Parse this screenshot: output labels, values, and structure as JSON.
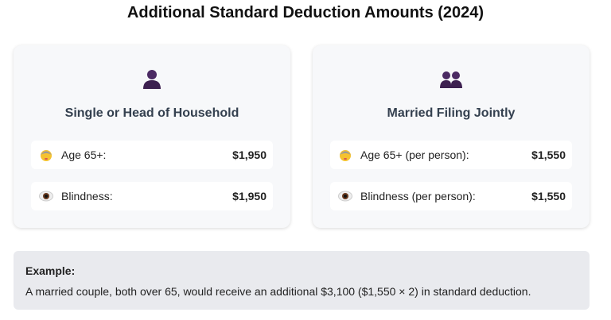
{
  "title": "Additional Standard Deduction Amounts (2024)",
  "cards": [
    {
      "icon": "single-person-icon",
      "heading": "Single or Head of Household",
      "rows": [
        {
          "icon": "older-person-icon",
          "label": "Age 65+:",
          "value": "$1,950"
        },
        {
          "icon": "eye-icon",
          "label": "Blindness:",
          "value": "$1,950"
        }
      ]
    },
    {
      "icon": "two-people-icon",
      "heading": "Married Filing Jointly",
      "rows": [
        {
          "icon": "older-person-icon",
          "label": "Age 65+ (per person):",
          "value": "$1,550"
        },
        {
          "icon": "eye-icon",
          "label": "Blindness (per person):",
          "value": "$1,550"
        }
      ]
    }
  ],
  "example": {
    "heading": "Example:",
    "text": "A married couple, both over 65, would receive an additional $3,100 ($1,550 × 2) in standard deduction."
  },
  "colors": {
    "icon_purple": "#4b2a63",
    "card_bg": "#f7f8fa",
    "example_bg": "#e9eaee"
  }
}
